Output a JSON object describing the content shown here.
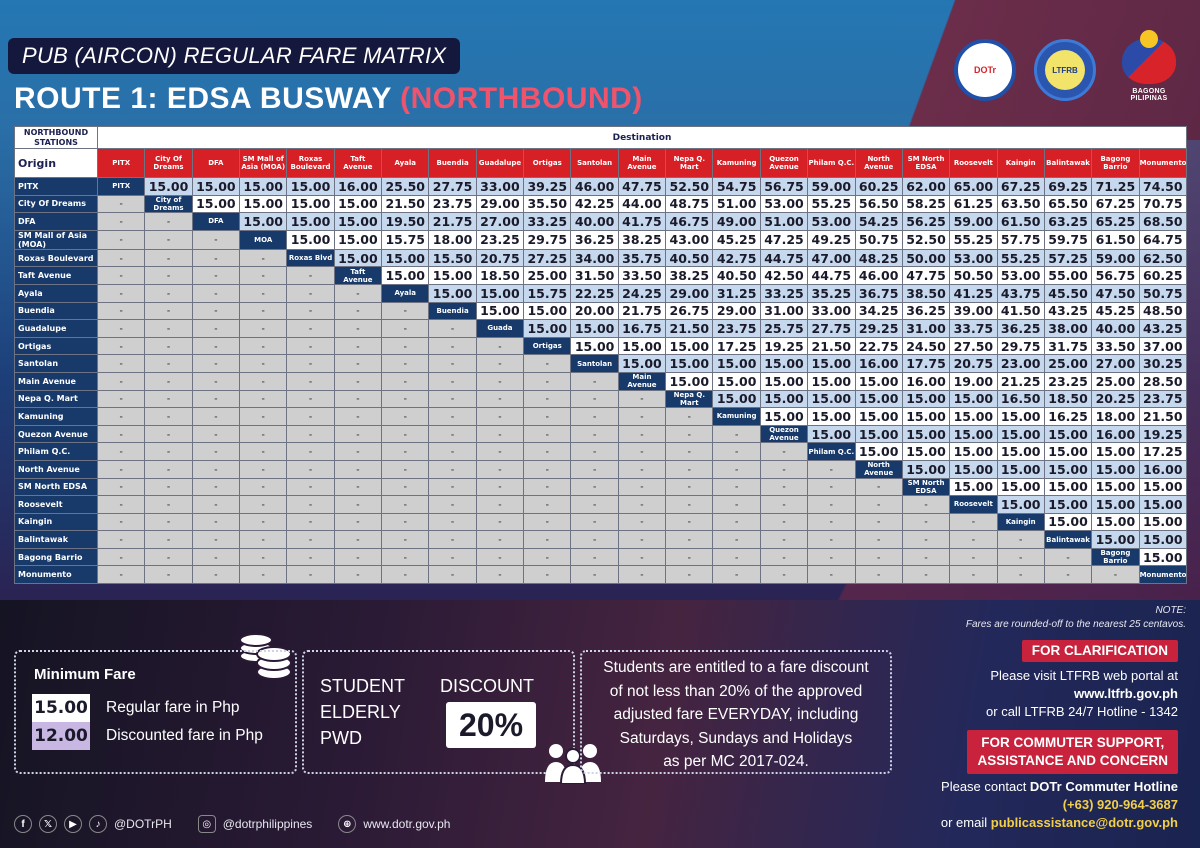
{
  "header": {
    "subtitle": "PUB (AIRCON) REGULAR FARE MATRIX",
    "title_main": "ROUTE 1: EDSA BUSWAY ",
    "title_direction": "(NORTHBOUND)",
    "logos": {
      "dotr": "DOTr",
      "ltfrb": "LTFRB",
      "bagong_pilipinas": "BAGONG PILIPINAS"
    }
  },
  "matrix": {
    "corner_label": "NORTHBOUND STATIONS",
    "destination_label": "Destination",
    "origin_label": "Origin",
    "columns": [
      "PITX",
      "City Of Dreams",
      "DFA",
      "SM Mall of Asia (MOA)",
      "Roxas Boulevard",
      "Taft Avenue",
      "Ayala",
      "Buendia",
      "Guadalupe",
      "Ortigas",
      "Santolan",
      "Main Avenue",
      "Nepa Q. Mart",
      "Kamuning",
      "Quezon Avenue",
      "Philam Q.C.",
      "North Avenue",
      "SM North EDSA",
      "Roosevelt",
      "Kaingin",
      "Balintawak",
      "Bagong Barrio",
      "Monumento"
    ],
    "diagonal_labels": [
      "PITX",
      "City of Dreams",
      "DFA",
      "MOA",
      "Roxas Blvd",
      "Taft Avenue",
      "Ayala",
      "Buendia",
      "Guada",
      "Ortigas",
      "Santolan",
      "Main Avenue",
      "Nepa Q. Mart",
      "Kamuning",
      "Quezon Avenue",
      "Philam Q.C.",
      "North Avenue",
      "SM North EDSA",
      "Roosevelt",
      "Kaingin",
      "Balintawak",
      "Bagong Barrio",
      "Monumento"
    ],
    "rows": [
      {
        "origin": "PITX",
        "fares": [
          "15.00",
          "15.00",
          "15.00",
          "15.00",
          "16.00",
          "25.50",
          "27.75",
          "33.00",
          "39.25",
          "46.00",
          "47.75",
          "52.50",
          "54.75",
          "56.75",
          "59.00",
          "60.25",
          "62.00",
          "65.00",
          "67.25",
          "69.25",
          "71.25",
          "74.50"
        ]
      },
      {
        "origin": "City Of Dreams",
        "fares": [
          "15.00",
          "15.00",
          "15.00",
          "15.00",
          "21.50",
          "23.75",
          "29.00",
          "35.50",
          "42.25",
          "44.00",
          "48.75",
          "51.00",
          "53.00",
          "55.25",
          "56.50",
          "58.25",
          "61.25",
          "63.50",
          "65.50",
          "67.25",
          "70.75"
        ]
      },
      {
        "origin": "DFA",
        "fares": [
          "15.00",
          "15.00",
          "15.00",
          "19.50",
          "21.75",
          "27.00",
          "33.25",
          "40.00",
          "41.75",
          "46.75",
          "49.00",
          "51.00",
          "53.00",
          "54.25",
          "56.25",
          "59.00",
          "61.50",
          "63.25",
          "65.25",
          "68.50"
        ]
      },
      {
        "origin": "SM Mall of Asia (MOA)",
        "fares": [
          "15.00",
          "15.00",
          "15.75",
          "18.00",
          "23.25",
          "29.75",
          "36.25",
          "38.25",
          "43.00",
          "45.25",
          "47.25",
          "49.25",
          "50.75",
          "52.50",
          "55.25",
          "57.75",
          "59.75",
          "61.50",
          "64.75"
        ]
      },
      {
        "origin": "Roxas Boulevard",
        "fares": [
          "15.00",
          "15.00",
          "15.50",
          "20.75",
          "27.25",
          "34.00",
          "35.75",
          "40.50",
          "42.75",
          "44.75",
          "47.00",
          "48.25",
          "50.00",
          "53.00",
          "55.25",
          "57.25",
          "59.00",
          "62.50"
        ]
      },
      {
        "origin": "Taft Avenue",
        "fares": [
          "15.00",
          "15.00",
          "18.50",
          "25.00",
          "31.50",
          "33.50",
          "38.25",
          "40.50",
          "42.50",
          "44.75",
          "46.00",
          "47.75",
          "50.50",
          "53.00",
          "55.00",
          "56.75",
          "60.25"
        ]
      },
      {
        "origin": "Ayala",
        "fares": [
          "15.00",
          "15.00",
          "15.75",
          "22.25",
          "24.25",
          "29.00",
          "31.25",
          "33.25",
          "35.25",
          "36.75",
          "38.50",
          "41.25",
          "43.75",
          "45.50",
          "47.50",
          "50.75"
        ]
      },
      {
        "origin": "Buendia",
        "fares": [
          "15.00",
          "15.00",
          "20.00",
          "21.75",
          "26.75",
          "29.00",
          "31.00",
          "33.00",
          "34.25",
          "36.25",
          "39.00",
          "41.50",
          "43.25",
          "45.25",
          "48.50"
        ]
      },
      {
        "origin": "Guadalupe",
        "fares": [
          "15.00",
          "15.00",
          "16.75",
          "21.50",
          "23.75",
          "25.75",
          "27.75",
          "29.25",
          "31.00",
          "33.75",
          "36.25",
          "38.00",
          "40.00",
          "43.25"
        ]
      },
      {
        "origin": "Ortigas",
        "fares": [
          "15.00",
          "15.00",
          "15.00",
          "17.25",
          "19.25",
          "21.50",
          "22.75",
          "24.50",
          "27.50",
          "29.75",
          "31.75",
          "33.50",
          "37.00"
        ]
      },
      {
        "origin": "Santolan",
        "fares": [
          "15.00",
          "15.00",
          "15.00",
          "15.00",
          "15.00",
          "16.00",
          "17.75",
          "20.75",
          "23.00",
          "25.00",
          "27.00",
          "30.25"
        ]
      },
      {
        "origin": "Main Avenue",
        "fares": [
          "15.00",
          "15.00",
          "15.00",
          "15.00",
          "15.00",
          "16.00",
          "19.00",
          "21.25",
          "23.25",
          "25.00",
          "28.50"
        ]
      },
      {
        "origin": "Nepa Q. Mart",
        "fares": [
          "15.00",
          "15.00",
          "15.00",
          "15.00",
          "15.00",
          "15.00",
          "16.50",
          "18.50",
          "20.25",
          "23.75"
        ]
      },
      {
        "origin": "Kamuning",
        "fares": [
          "15.00",
          "15.00",
          "15.00",
          "15.00",
          "15.00",
          "15.00",
          "16.25",
          "18.00",
          "21.50"
        ]
      },
      {
        "origin": "Quezon Avenue",
        "fares": [
          "15.00",
          "15.00",
          "15.00",
          "15.00",
          "15.00",
          "15.00",
          "16.00",
          "19.25"
        ]
      },
      {
        "origin": "Philam Q.C.",
        "fares": [
          "15.00",
          "15.00",
          "15.00",
          "15.00",
          "15.00",
          "15.00",
          "17.25"
        ]
      },
      {
        "origin": "North Avenue",
        "fares": [
          "15.00",
          "15.00",
          "15.00",
          "15.00",
          "15.00",
          "16.00"
        ]
      },
      {
        "origin": "SM North EDSA",
        "fares": [
          "15.00",
          "15.00",
          "15.00",
          "15.00",
          "15.00"
        ]
      },
      {
        "origin": "Roosevelt",
        "fares": [
          "15.00",
          "15.00",
          "15.00",
          "15.00"
        ]
      },
      {
        "origin": "Kaingin",
        "fares": [
          "15.00",
          "15.00",
          "15.00"
        ]
      },
      {
        "origin": "Balintawak",
        "fares": [
          "15.00",
          "15.00"
        ]
      },
      {
        "origin": "Bagong Barrio",
        "fares": [
          "15.00"
        ]
      },
      {
        "origin": "Monumento",
        "fares": []
      }
    ],
    "blank_symbol": "-"
  },
  "note": {
    "title": "NOTE:",
    "text": "Fares are rounded-off to the nearest 25 centavos."
  },
  "minimum_fare": {
    "label": "Minimum Fare",
    "regular_value": "15.00",
    "regular_desc": "Regular fare in Php",
    "discounted_value": "12.00",
    "discounted_desc": "Discounted fare in Php"
  },
  "discount": {
    "categories": [
      "STUDENT",
      "ELDERLY",
      "PWD"
    ],
    "label": "DISCOUNT",
    "percent": "20%"
  },
  "student_notice": {
    "lines": [
      "Students are entitled to a fare discount",
      "of not less than 20% of the approved",
      "adjusted fare EVERYDAY, including",
      "Saturdays, Sundays and Holidays",
      "as per MC 2017-024."
    ]
  },
  "contact": {
    "clarification_tag": "FOR CLARIFICATION",
    "clarification_line1": "Please visit LTFRB web portal at",
    "clarification_url": "www.ltfrb.gov.ph",
    "clarification_line3": "or call LTFRB 24/7 Hotline  - 1342",
    "support_tag_line1": "FOR COMMUTER SUPPORT,",
    "support_tag_line2": "ASSISTANCE AND CONCERN",
    "support_prefix": "Please contact ",
    "support_hotline_name": "DOTr Commuter Hotline",
    "support_phone": "(+63) 920-964-3687",
    "support_email_prefix": "or email ",
    "support_email": "publicassistance@dotr.gov.ph"
  },
  "footer": {
    "social_handle": "@DOTrPH",
    "instagram_handle": "@dotrphilippines",
    "website": "www.dotr.gov.ph"
  },
  "colors": {
    "header_red": "#d71f26",
    "navy": "#173a6b",
    "row_blue": "#c6d8ee",
    "blank_gray": "#cfcfcf",
    "accent_pink": "#f0546c",
    "tag_red": "#c8223c",
    "email_yellow": "#f2cf4a",
    "discount_purple": "#c8b7e2"
  }
}
